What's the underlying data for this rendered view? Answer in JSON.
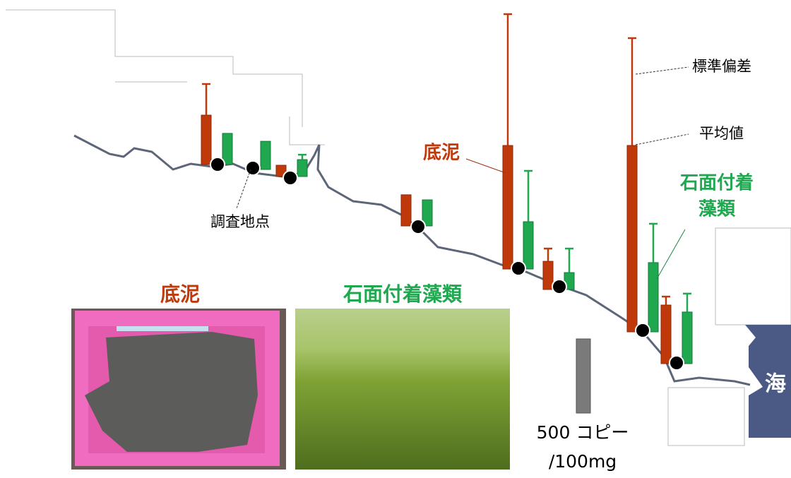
{
  "labels": {
    "sediment": "底泥",
    "algae_line1": "石面付着",
    "algae_line2": "藻類",
    "sd": "標準偏差",
    "mean": "平均値",
    "site": "調査地点",
    "sea": "海"
  },
  "photos": [
    {
      "caption": "底泥"
    },
    {
      "caption": "石面付着藻類"
    }
  ],
  "scale_bar": {
    "value": 500,
    "label_line1": "500 コピー",
    "label_line2": "/100mg"
  },
  "sites": [
    {
      "sediment": {
        "mean": 333,
        "sd": 210
      },
      "algae": {
        "mean": 210,
        "sd": null
      }
    },
    {
      "sediment": null,
      "algae": {
        "mean": 190,
        "sd": null
      }
    },
    {
      "sediment": {
        "mean": 76,
        "sd": null
      },
      "algae": {
        "mean": 114,
        "sd": 33
      }
    },
    {
      "sediment": {
        "mean": 210,
        "sd": null
      },
      "algae": {
        "mean": 176,
        "sd": null
      }
    },
    {
      "sediment": {
        "mean": 833,
        "sd": 886
      },
      "algae": {
        "mean": 319,
        "sd": 343
      }
    },
    {
      "sediment": {
        "mean": 190,
        "sd": 86
      },
      "algae": {
        "mean": 114,
        "sd": 162
      }
    },
    {
      "sediment": {
        "mean": 1257,
        "sd": 724
      },
      "algae": {
        "mean": 467,
        "sd": 262
      }
    },
    {
      "sediment": {
        "mean": 395,
        "sd": 57
      },
      "algae": {
        "mean": 348,
        "sd": 124
      }
    }
  ]
}
